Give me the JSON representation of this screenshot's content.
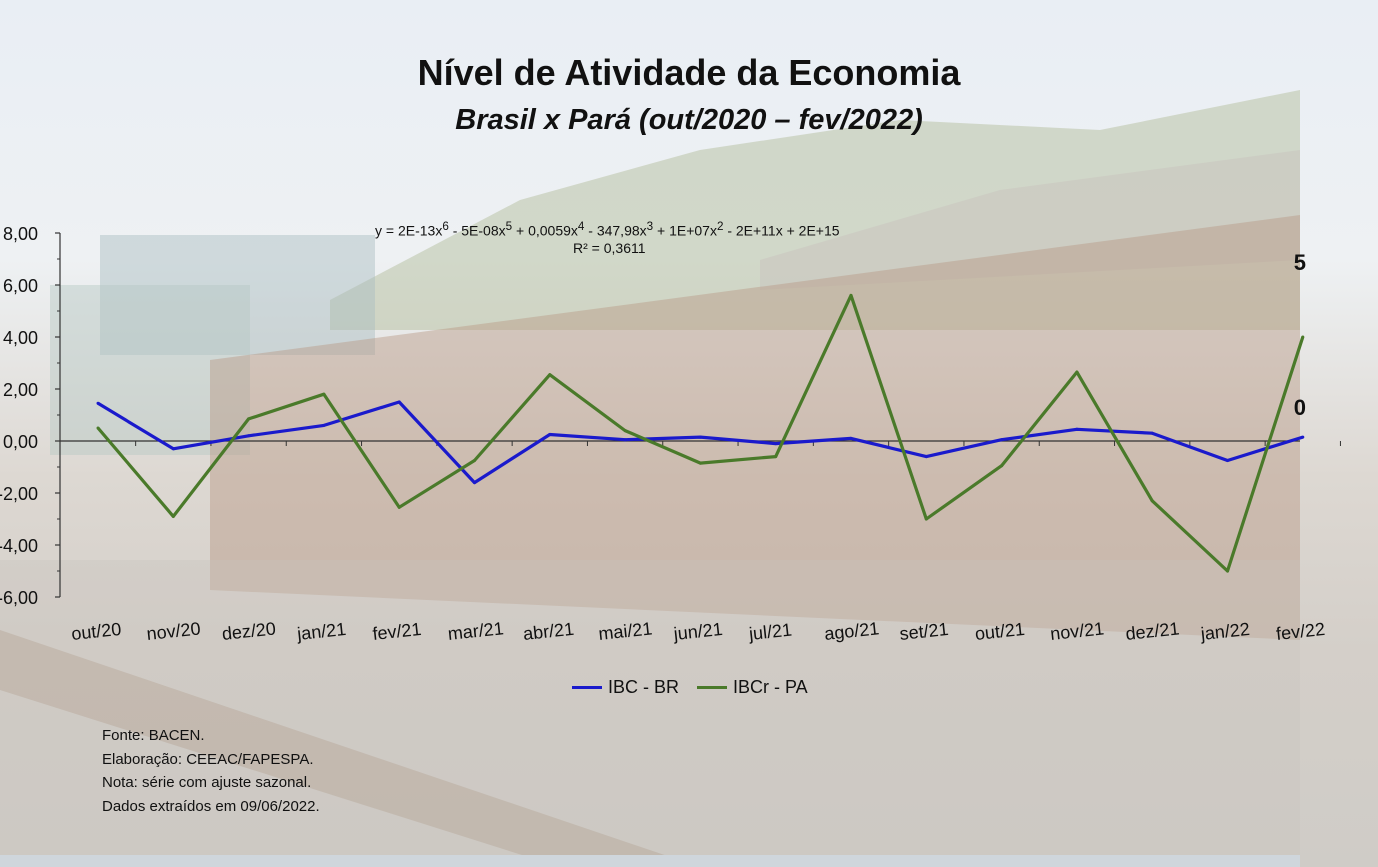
{
  "title": "Nível de Atividade da Economia",
  "subtitle": "Brasil x Pará (out/2020 – fev/2022)",
  "trendline": {
    "eq_plain": "y = 2E-13x",
    "e1": "6",
    "eq_2": " - 5E-08x",
    "e2": "5",
    "eq_3": " + 0,0059x",
    "e3": "4",
    "eq_4": " - 347,98x",
    "e4": "3",
    "eq_5": " + 1E+07x",
    "e5": "2",
    "eq_6": " - 2E+11x + 2E+15",
    "r2": "R² = 0,3611"
  },
  "right_axis_fragments": [
    "5",
    "0"
  ],
  "legend": {
    "series1": "IBC - BR",
    "series2": "IBCr - PA"
  },
  "notes": [
    "Fonte: BACEN.",
    "Elaboração: CEEAC/FAPESPA.",
    "Nota: série com ajuste sazonal.",
    "Dados extraídos em 09/06/2022."
  ],
  "chart_data": {
    "type": "line",
    "title": "Nível de Atividade da Economia",
    "subtitle": "Brasil x Pará (out/2020 – fev/2022)",
    "categories": [
      "out/20",
      "nov/20",
      "dez/20",
      "jan/21",
      "fev/21",
      "mar/21",
      "abr/21",
      "mai/21",
      "jun/21",
      "jul/21",
      "ago/21",
      "set/21",
      "out/21",
      "nov/21",
      "dez/21",
      "jan/22",
      "fev/22"
    ],
    "y_tick_labels": [
      "8,00",
      "6,00",
      "4,00",
      "2,00",
      "0,00",
      "-2,00",
      "-4,00",
      "-6,00"
    ],
    "ylim": [
      -6,
      8
    ],
    "series": [
      {
        "name": "IBC - BR",
        "color": "#1a1acc",
        "values": [
          1.45,
          -0.3,
          0.2,
          0.6,
          1.5,
          -1.6,
          0.25,
          0.05,
          0.15,
          -0.1,
          0.1,
          -0.6,
          0.05,
          0.45,
          0.3,
          -0.75,
          0.15
        ]
      },
      {
        "name": "IBCr - PA",
        "color": "#4a7a2a",
        "values": [
          0.5,
          -2.9,
          0.85,
          1.8,
          -2.55,
          -0.75,
          2.55,
          0.4,
          -0.85,
          -0.6,
          5.6,
          -3.0,
          -0.95,
          2.65,
          -2.3,
          -5.0,
          4.0
        ]
      }
    ],
    "legend": "bottom-center",
    "grid": false
  }
}
